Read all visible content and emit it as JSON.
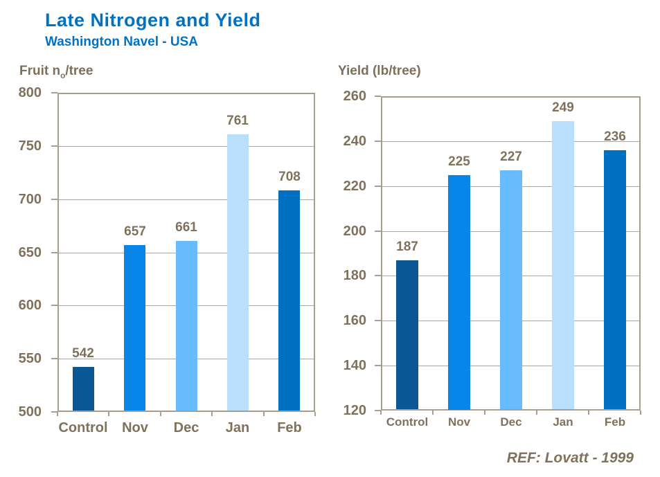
{
  "page": {
    "title": "Late Nitrogen and Yield",
    "subtitle": "Washington Navel - USA",
    "footer_ref": "REF: Lovatt - 1999"
  },
  "colors": {
    "title_blue": "#0072C6",
    "text_brown": "#80715C",
    "plot_border": "#A79E90",
    "gridline": "#A6A6A6"
  },
  "chart_data": [
    {
      "type": "bar",
      "name": "fruit-number-per-tree",
      "ylabel_parts": {
        "pre": "Fruit n",
        "sub": "o",
        "post": "/tree"
      },
      "categories": [
        "Control",
        "Nov",
        "Dec",
        "Jan",
        "Feb"
      ],
      "values": [
        542,
        657,
        661,
        761,
        708
      ],
      "bar_colors": [
        "#0B5796",
        "#0885E9",
        "#67BCFD",
        "#BADFFD",
        "#0071C2"
      ],
      "ylim": [
        500,
        800
      ],
      "yticks": [
        800,
        750,
        700,
        650,
        600,
        550,
        500
      ],
      "grid": true,
      "legend": false
    },
    {
      "type": "bar",
      "name": "yield-per-tree",
      "ylabel": "Yield (lb/tree)",
      "categories": [
        "Control",
        "Nov",
        "Dec",
        "Jan",
        "Feb"
      ],
      "values": [
        187,
        225,
        227,
        249,
        236
      ],
      "bar_colors": [
        "#0B5796",
        "#0885E9",
        "#67BCFD",
        "#BADFFD",
        "#0071C2"
      ],
      "ylim": [
        120,
        260
      ],
      "yticks": [
        260,
        240,
        220,
        200,
        180,
        160,
        140,
        120
      ],
      "grid": true,
      "legend": false
    }
  ]
}
